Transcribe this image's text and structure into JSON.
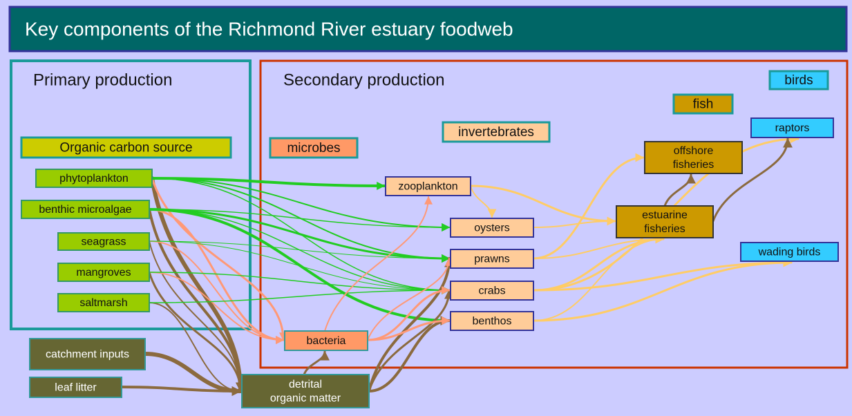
{
  "header": {
    "title": "Key components of the Richmond River estuary foodweb"
  },
  "panels": [
    {
      "title": "Primary production"
    },
    {
      "title": "Secondary production"
    }
  ],
  "groups": [
    {
      "label": "Organic carbon source"
    },
    {
      "label": "microbes"
    },
    {
      "label": "invertebrates"
    },
    {
      "label": "fish"
    },
    {
      "label": "birds"
    }
  ],
  "nodes": [
    {
      "lines": [
        "phytoplankton"
      ]
    },
    {
      "lines": [
        "benthic microalgae"
      ]
    },
    {
      "lines": [
        "seagrass"
      ]
    },
    {
      "lines": [
        "mangroves"
      ]
    },
    {
      "lines": [
        "saltmarsh"
      ]
    },
    {
      "lines": [
        "catchment inputs"
      ]
    },
    {
      "lines": [
        "leaf litter"
      ]
    },
    {
      "lines": [
        "detrital",
        "organic matter"
      ]
    },
    {
      "lines": [
        "bacteria"
      ]
    },
    {
      "lines": [
        "zooplankton"
      ]
    },
    {
      "lines": [
        "oysters"
      ]
    },
    {
      "lines": [
        "prawns"
      ]
    },
    {
      "lines": [
        "crabs"
      ]
    },
    {
      "lines": [
        "benthos"
      ]
    },
    {
      "lines": [
        "offshore",
        "fisheries"
      ]
    },
    {
      "lines": [
        "estuarine",
        "fisheries"
      ]
    },
    {
      "lines": [
        "raptors"
      ]
    },
    {
      "lines": [
        "wading birds"
      ]
    }
  ]
}
